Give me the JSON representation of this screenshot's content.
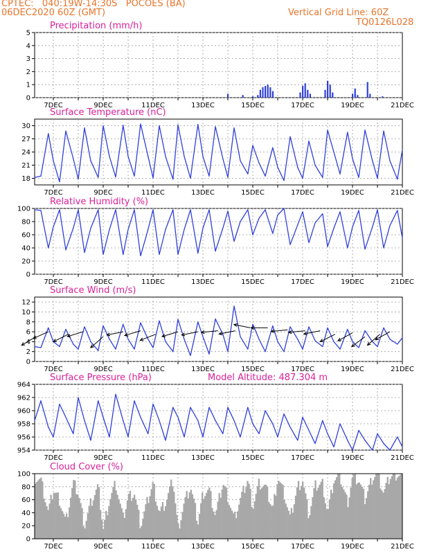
{
  "header": {
    "left_line1": "CPTEC:   040:19W-14:30S   POCOES (BA)",
    "left_line2": "06DEC2020 60Z (GMT)",
    "right_line1": "Vertical Grid Line: 60Z",
    "right_line2": "TQ0126L028"
  },
  "colors": {
    "header": "#e8742a",
    "title": "#d8209a",
    "line": "#2f3fd8",
    "wind_arrow": "#000000",
    "cloud": "#a8a8a8",
    "grid": "#9a9a9a"
  },
  "x_axis": {
    "labels": [
      "7DEC",
      "9DEC",
      "11DEC",
      "13DEC",
      "15DEC",
      "17DEC",
      "19DEC",
      "21DEC"
    ]
  },
  "chart_data": [
    {
      "type": "bar",
      "title": "Precipitation (mm/h)",
      "ylim": [
        0,
        5
      ],
      "yticks": [
        "0",
        "1",
        "2",
        "3",
        "4",
        "5"
      ],
      "x_range": [
        "6DEC2020 06Z",
        "21DEC2020 00Z"
      ],
      "series": [
        {
          "values": [
            [
              15.0,
              0.1
            ],
            [
              15.2,
              0.2
            ],
            [
              15.3,
              0.6
            ],
            [
              15.4,
              0.8
            ],
            [
              15.5,
              0.9
            ],
            [
              15.6,
              1.0
            ],
            [
              15.7,
              0.8
            ],
            [
              15.8,
              0.5
            ],
            [
              16.9,
              0.4
            ],
            [
              17.0,
              0.9
            ],
            [
              17.1,
              1.1
            ],
            [
              17.2,
              0.6
            ],
            [
              17.3,
              0.3
            ],
            [
              17.9,
              0.6
            ],
            [
              18.0,
              1.3
            ],
            [
              18.1,
              1.0
            ],
            [
              18.2,
              0.4
            ],
            [
              19.0,
              0.3
            ],
            [
              19.1,
              0.7
            ],
            [
              19.2,
              0.2
            ],
            [
              19.6,
              1.2
            ],
            [
              19.7,
              0.3
            ],
            [
              14.0,
              0.3
            ],
            [
              14.6,
              0.2
            ],
            [
              20.2,
              0.1
            ]
          ]
        }
      ]
    },
    {
      "type": "line",
      "title": "Surface Temperature (nC)",
      "ylim": [
        16.5,
        31.5
      ],
      "yticks": [
        "18",
        "21",
        "24",
        "27",
        "30"
      ],
      "series": [
        {
          "x": [
            6.25,
            6.5,
            6.8,
            7.0,
            7.25,
            7.5,
            7.8,
            8.0,
            8.25,
            8.5,
            8.8,
            9.0,
            9.25,
            9.5,
            9.8,
            10.0,
            10.25,
            10.5,
            10.8,
            11.0,
            11.25,
            11.5,
            11.8,
            12.0,
            12.25,
            12.5,
            12.8,
            13.0,
            13.25,
            13.5,
            13.8,
            14.0,
            14.25,
            14.5,
            14.8,
            15.0,
            15.25,
            15.5,
            15.8,
            16.0,
            16.25,
            16.5,
            16.8,
            17.0,
            17.25,
            17.5,
            17.8,
            18.0,
            18.25,
            18.5,
            18.8,
            19.0,
            19.25,
            19.5,
            19.8,
            20.0,
            20.25,
            20.5,
            20.8,
            21.0
          ],
          "values": [
            18.2,
            18.5,
            28.2,
            22.0,
            17.2,
            28.8,
            22.5,
            17.8,
            29.5,
            22.0,
            18.2,
            30.0,
            23.0,
            18.3,
            30.1,
            23.0,
            18.5,
            30.4,
            23.0,
            18.1,
            30.0,
            23.0,
            17.8,
            30.2,
            23.0,
            18.0,
            30.3,
            23.0,
            18.5,
            29.8,
            22.5,
            18.2,
            29.5,
            22.0,
            19.0,
            25.5,
            21.5,
            18.5,
            25.0,
            20.5,
            17.5,
            27.5,
            20.5,
            18.0,
            26.5,
            21.0,
            18.2,
            29.0,
            24.0,
            19.0,
            28.5,
            22.5,
            18.2,
            29.0,
            22.0,
            18.0,
            28.8,
            22.0,
            17.8,
            24.5
          ]
        }
      ]
    },
    {
      "type": "line",
      "title": "Relative Humidity (%)",
      "ylim": [
        0,
        100
      ],
      "yticks": [
        "0",
        "20",
        "40",
        "60",
        "80",
        "100"
      ],
      "series": [
        {
          "x": [
            6.25,
            6.5,
            6.8,
            7.0,
            7.25,
            7.5,
            7.8,
            8.0,
            8.25,
            8.5,
            8.8,
            9.0,
            9.25,
            9.5,
            9.8,
            10.0,
            10.25,
            10.5,
            10.8,
            11.0,
            11.25,
            11.5,
            11.8,
            12.0,
            12.25,
            12.5,
            12.8,
            13.0,
            13.25,
            13.5,
            13.8,
            14.0,
            14.25,
            14.5,
            14.8,
            15.0,
            15.25,
            15.5,
            15.8,
            16.0,
            16.25,
            16.5,
            16.8,
            17.0,
            17.25,
            17.5,
            17.8,
            18.0,
            18.25,
            18.5,
            18.8,
            19.0,
            19.25,
            19.5,
            19.8,
            20.0,
            20.25,
            20.5,
            20.8,
            21.0
          ],
          "values": [
            98,
            97,
            40,
            72,
            98,
            37,
            70,
            98,
            33,
            70,
            98,
            30,
            68,
            98,
            30,
            68,
            98,
            28,
            68,
            98,
            30,
            68,
            98,
            30,
            68,
            98,
            32,
            70,
            98,
            35,
            70,
            96,
            50,
            80,
            98,
            60,
            85,
            98,
            62,
            90,
            100,
            45,
            75,
            95,
            48,
            78,
            92,
            42,
            70,
            95,
            40,
            72,
            97,
            38,
            72,
            98,
            40,
            74,
            97,
            55
          ]
        }
      ]
    },
    {
      "type": "line",
      "title": "Surface Wind (m/s)",
      "ylim": [
        0,
        13
      ],
      "yticks": [
        "0",
        "2",
        "4",
        "6",
        "8",
        "10",
        "12"
      ],
      "series": [
        {
          "x": [
            6.25,
            6.5,
            6.8,
            7.0,
            7.25,
            7.5,
            7.8,
            8.0,
            8.25,
            8.5,
            8.8,
            9.0,
            9.25,
            9.5,
            9.8,
            10.0,
            10.25,
            10.5,
            10.8,
            11.0,
            11.25,
            11.5,
            11.8,
            12.0,
            12.25,
            12.5,
            12.8,
            13.0,
            13.25,
            13.5,
            13.8,
            14.0,
            14.25,
            14.5,
            14.8,
            15.0,
            15.25,
            15.5,
            15.8,
            16.0,
            16.25,
            16.5,
            16.8,
            17.0,
            17.25,
            17.5,
            17.8,
            18.0,
            18.25,
            18.5,
            18.8,
            19.0,
            19.25,
            19.5,
            19.8,
            20.0,
            20.25,
            20.5,
            20.8,
            21.0
          ],
          "values": [
            3.0,
            2.8,
            6.8,
            4.0,
            3.0,
            6.5,
            3.5,
            2.5,
            7.0,
            4.0,
            2.2,
            7.2,
            4.5,
            2.5,
            7.5,
            4.5,
            2.5,
            7.8,
            4.5,
            2.8,
            8.2,
            4.0,
            2.0,
            8.5,
            4.5,
            1.2,
            8.0,
            5.0,
            1.5,
            8.6,
            5.5,
            2.0,
            11.2,
            5.0,
            2.5,
            7.5,
            4.5,
            2.0,
            7.2,
            4.0,
            2.0,
            7.0,
            4.5,
            2.5,
            7.0,
            4.2,
            3.0,
            6.8,
            4.0,
            2.5,
            6.5,
            4.0,
            2.8,
            6.2,
            4.0,
            3.0,
            6.8,
            4.5,
            3.5,
            4.8
          ]
        }
      ],
      "arrows": [
        {
          "x": 6.3,
          "y": 5.0,
          "dx": -1,
          "dy": -0.6
        },
        {
          "x": 6.8,
          "y": 6.0,
          "dx": -0.9,
          "dy": -0.4
        },
        {
          "x": 7.6,
          "y": 5.5,
          "dx": -1,
          "dy": -0.5
        },
        {
          "x": 8.2,
          "y": 6.0,
          "dx": -1,
          "dy": -0.3
        },
        {
          "x": 9.0,
          "y": 5.0,
          "dx": -0.8,
          "dy": -0.7
        },
        {
          "x": 9.8,
          "y": 6.0,
          "dx": -1,
          "dy": -0.2
        },
        {
          "x": 10.5,
          "y": 6.2,
          "dx": -1,
          "dy": -0.3
        },
        {
          "x": 11.1,
          "y": 5.5,
          "dx": -1,
          "dy": -0.4
        },
        {
          "x": 12.0,
          "y": 6.0,
          "dx": -1,
          "dy": -0.3
        },
        {
          "x": 12.8,
          "y": 6.0,
          "dx": -1,
          "dy": -0.2
        },
        {
          "x": 13.6,
          "y": 6.2,
          "dx": -1,
          "dy": -0.1
        },
        {
          "x": 14.3,
          "y": 6.2,
          "dx": -1,
          "dy": -0.2
        },
        {
          "x": 14.9,
          "y": 6.8,
          "dx": -1,
          "dy": 0.2
        },
        {
          "x": 15.6,
          "y": 6.8,
          "dx": -1,
          "dy": 0.0
        },
        {
          "x": 16.4,
          "y": 6.4,
          "dx": -1,
          "dy": -0.1
        },
        {
          "x": 17.1,
          "y": 6.2,
          "dx": -1,
          "dy": -0.1
        },
        {
          "x": 17.7,
          "y": 6.2,
          "dx": -1,
          "dy": -0.2
        },
        {
          "x": 18.3,
          "y": 5.5,
          "dx": -1,
          "dy": -0.5
        },
        {
          "x": 19.0,
          "y": 5.8,
          "dx": -0.9,
          "dy": -0.5
        },
        {
          "x": 19.5,
          "y": 5.0,
          "dx": -0.8,
          "dy": -0.6
        },
        {
          "x": 20.1,
          "y": 5.5,
          "dx": -0.8,
          "dy": -0.7
        },
        {
          "x": 20.5,
          "y": 6.0,
          "dx": -0.9,
          "dy": -0.5
        }
      ]
    },
    {
      "type": "line",
      "title": "Surface Pressure (hPa)",
      "subtitle": "Model Altitude: 487.304 m",
      "ylim": [
        954,
        964
      ],
      "yticks": [
        "954",
        "956",
        "958",
        "960",
        "962",
        "964"
      ],
      "series": [
        {
          "x": [
            6.25,
            6.5,
            6.8,
            7.0,
            7.25,
            7.5,
            7.8,
            8.0,
            8.25,
            8.5,
            8.8,
            9.0,
            9.25,
            9.5,
            9.8,
            10.0,
            10.25,
            10.5,
            10.8,
            11.0,
            11.25,
            11.5,
            11.8,
            12.0,
            12.25,
            12.5,
            12.8,
            13.0,
            13.25,
            13.5,
            13.8,
            14.0,
            14.25,
            14.5,
            14.8,
            15.0,
            15.25,
            15.5,
            15.8,
            16.0,
            16.25,
            16.5,
            16.8,
            17.0,
            17.25,
            17.5,
            17.8,
            18.0,
            18.25,
            18.5,
            18.8,
            19.0,
            19.25,
            19.5,
            19.8,
            20.0,
            20.25,
            20.5,
            20.8,
            21.0
          ],
          "values": [
            958.5,
            961.5,
            957.5,
            956.0,
            961.0,
            959.0,
            956.5,
            962.0,
            958.5,
            955.5,
            961.5,
            959.0,
            956.0,
            962.5,
            958.5,
            956.0,
            961.5,
            959.0,
            956.5,
            961.0,
            958.5,
            955.5,
            960.5,
            959.0,
            956.0,
            960.5,
            958.5,
            956.0,
            960.5,
            958.5,
            956.5,
            960.5,
            958.5,
            956.0,
            960.5,
            958.0,
            956.5,
            960.0,
            958.0,
            956.0,
            959.5,
            957.5,
            955.5,
            959.0,
            957.0,
            955.0,
            958.5,
            956.5,
            954.5,
            958.0,
            955.5,
            954.0,
            957.0,
            955.5,
            953.5,
            956.5,
            955.0,
            953.5,
            956.0,
            954.5
          ]
        }
      ]
    },
    {
      "type": "bar",
      "title": "Cloud Cover (%)",
      "ylim": [
        0,
        100
      ],
      "yticks": [
        "0",
        "20",
        "40",
        "60",
        "80",
        "100"
      ],
      "series": [
        {
          "x": [
            6.25,
            6.5,
            6.8,
            7.0,
            7.25,
            7.5,
            7.8,
            8.0,
            8.25,
            8.5,
            8.8,
            9.0,
            9.25,
            9.5,
            9.8,
            10.0,
            10.25,
            10.5,
            10.8,
            11.0,
            11.25,
            11.5,
            11.8,
            12.0,
            12.25,
            12.5,
            12.8,
            13.0,
            13.25,
            13.5,
            13.8,
            14.0,
            14.25,
            14.5,
            14.8,
            15.0,
            15.25,
            15.5,
            15.8,
            16.0,
            16.25,
            16.5,
            16.8,
            17.0,
            17.25,
            17.5,
            17.8,
            18.0,
            18.25,
            18.5,
            18.8,
            19.0,
            19.25,
            19.5,
            19.8,
            20.0,
            20.25,
            20.5,
            20.8,
            21.0
          ],
          "values": [
            95,
            90,
            40,
            75,
            60,
            25,
            85,
            70,
            20,
            55,
            80,
            15,
            60,
            85,
            30,
            65,
            70,
            20,
            60,
            85,
            40,
            55,
            90,
            15,
            55,
            80,
            25,
            70,
            75,
            35,
            85,
            65,
            30,
            60,
            90,
            50,
            85,
            80,
            45,
            95,
            70,
            30,
            80,
            90,
            35,
            80,
            85,
            40,
            90,
            95,
            55,
            95,
            90,
            60,
            95,
            100,
            70,
            95,
            100,
            95
          ]
        }
      ]
    }
  ]
}
